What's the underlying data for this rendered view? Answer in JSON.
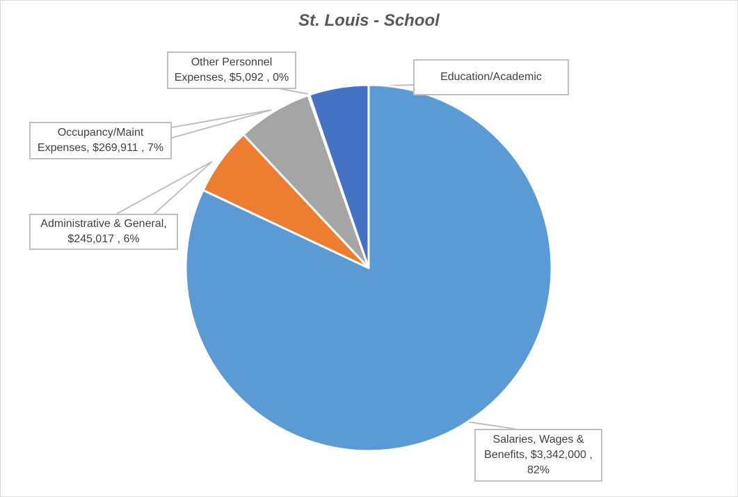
{
  "chart_data": {
    "type": "pie",
    "title": "St. Louis - School",
    "categories": [
      "Salaries, Wages & Benefits",
      "Administrative & General",
      "Occupancy/Maint Expenses",
      "Other Personnel Expenses",
      "Education/Academic"
    ],
    "values": [
      3342000,
      245017,
      269911,
      5092,
      214000
    ],
    "colors": [
      "#5B9BD5",
      "#ED7D31",
      "#A5A5A5",
      "#FFC000",
      "#4472C4"
    ],
    "data_labels": [
      {
        "line1": "Salaries, Wages &",
        "line2": "Benefits,  $3,342,000 ,",
        "line3": "82%"
      },
      {
        "line1": "Administrative & General,",
        "line2": "$245,017 , 6%"
      },
      {
        "line1": "Occupancy/Maint",
        "line2": "Expenses,  $269,911 , 7%"
      },
      {
        "line1": "Other Personnel",
        "line2": "Expenses,  $5,092 , 0%"
      },
      {
        "line1": "Education/Academic"
      }
    ],
    "legend": "none",
    "start_angle": "top, clockwise"
  }
}
